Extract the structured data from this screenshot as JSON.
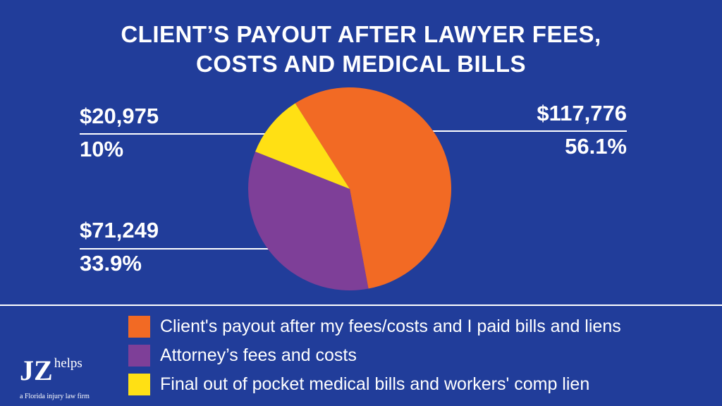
{
  "title": {
    "line1": "CLIENT’S PAYOUT AFTER LAWYER FEES,",
    "line2": "COSTS AND MEDICAL BILLS"
  },
  "chart_data": {
    "type": "pie",
    "slices": [
      {
        "label": "Client's payout after my fees/costs and I paid bills and liens",
        "value": 117776,
        "amount_label": "$117,776",
        "percent": 56.1,
        "percent_label": "56.1%",
        "color": "#f26a24"
      },
      {
        "label": "Attorney’s fees and costs",
        "value": 71249,
        "amount_label": "$71,249",
        "percent": 33.9,
        "percent_label": "33.9%",
        "color": "#7e3f98"
      },
      {
        "label": "Final out of pocket medical bills and workers' comp lien",
        "value": 20975,
        "amount_label": "$20,975",
        "percent": 10,
        "percent_label": "10%",
        "color": "#ffe014"
      }
    ],
    "legend_position": "bottom"
  },
  "legend": [
    {
      "label": "Client's payout after my fees/costs and I paid bills and liens",
      "color": "#f26a24"
    },
    {
      "label": "Attorney’s fees and costs",
      "color": "#7e3f98"
    },
    {
      "label": "Final out of pocket medical bills and workers' comp lien",
      "color": "#ffe014"
    }
  ],
  "logo": {
    "main": "JZ",
    "sub": "helps",
    "tagline": "a Florida injury law firm"
  }
}
